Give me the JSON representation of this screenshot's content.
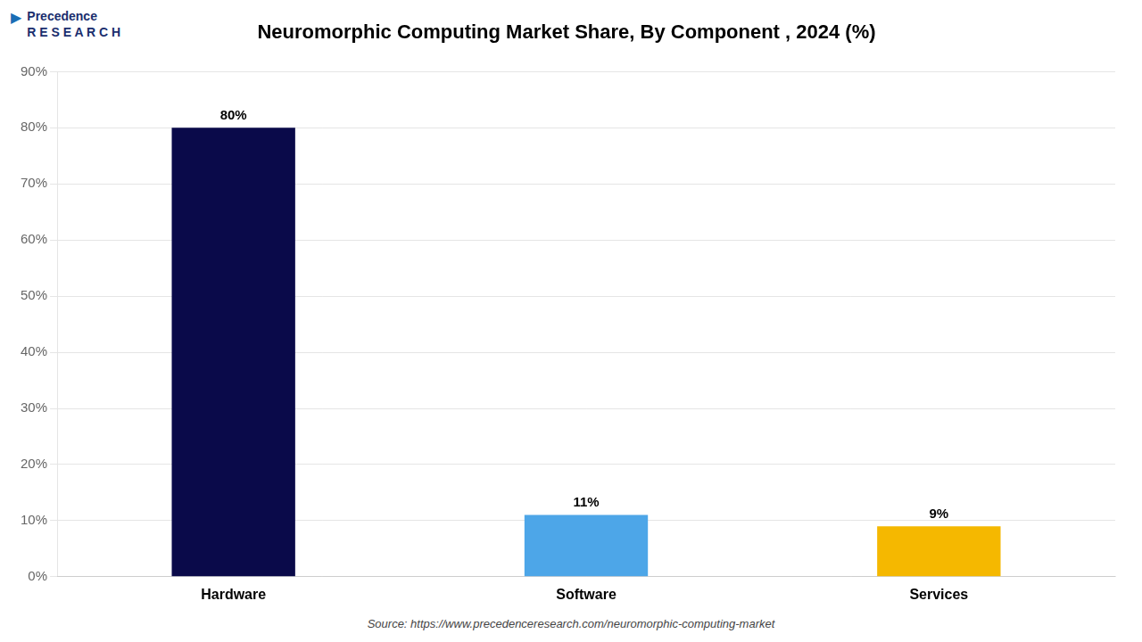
{
  "chart_data": {
    "type": "bar",
    "title": "Neuromorphic Computing Market Share, By Component , 2024 (%)",
    "categories": [
      "Hardware",
      "Software",
      "Services"
    ],
    "values": [
      80,
      11,
      9
    ],
    "value_labels": [
      "80%",
      "11%",
      "9%"
    ],
    "colors": [
      "#0a0a4a",
      "#4da6e8",
      "#f5b800"
    ],
    "data_labels": true,
    "ylim": [
      0,
      90
    ],
    "yticks": [
      {
        "value": 0,
        "label": "0%"
      },
      {
        "value": 10,
        "label": "10%"
      },
      {
        "value": 20,
        "label": "20%"
      },
      {
        "value": 30,
        "label": "30%"
      },
      {
        "value": 40,
        "label": "40%"
      },
      {
        "value": 50,
        "label": "50%"
      },
      {
        "value": 60,
        "label": "60%"
      },
      {
        "value": 70,
        "label": "70%"
      },
      {
        "value": 80,
        "label": "80%"
      },
      {
        "value": 90,
        "label": "90%"
      }
    ],
    "grid": true,
    "annotations": [
      "▶",
      "Precedence\nR E S E A R C H",
      "Source: https://www.precedenceresearch.com/neuromorphic-computing-market"
    ]
  }
}
